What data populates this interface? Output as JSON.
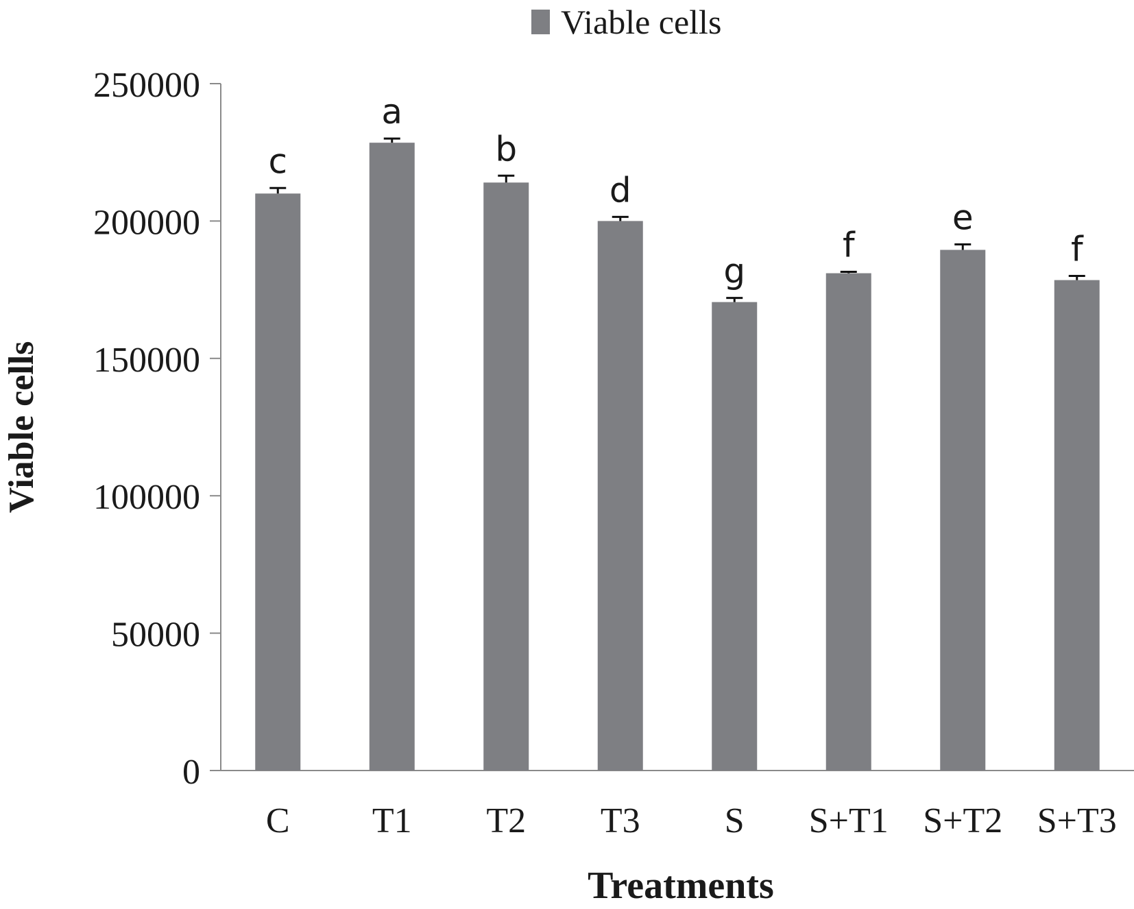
{
  "chart_data": {
    "type": "bar",
    "legend": {
      "label": "Viable cells",
      "position": "top-center"
    },
    "xlabel": "Treatments",
    "ylabel": "Viable cells",
    "ylim": [
      0,
      250000
    ],
    "yticks": [
      "0",
      "50000",
      "100000",
      "150000",
      "200000",
      "250000"
    ],
    "categories": [
      "C",
      "T1",
      "T2",
      "T3",
      "S",
      "S+T1",
      "S+T2",
      "S+T3"
    ],
    "series": [
      {
        "name": "Viable cells",
        "values": [
          210000,
          228500,
          214000,
          200000,
          170500,
          181000,
          189500,
          178500
        ],
        "error": [
          2000,
          1500,
          2500,
          1500,
          1500,
          500,
          2000,
          1500
        ]
      }
    ],
    "significance_letters": [
      "c",
      "a",
      "b",
      "d",
      "g",
      "f",
      "e",
      "f"
    ],
    "grid": false
  },
  "colors": {
    "bar": "#7e7f83",
    "axis": "#8a8a8a",
    "text": "#1a1a1a"
  }
}
